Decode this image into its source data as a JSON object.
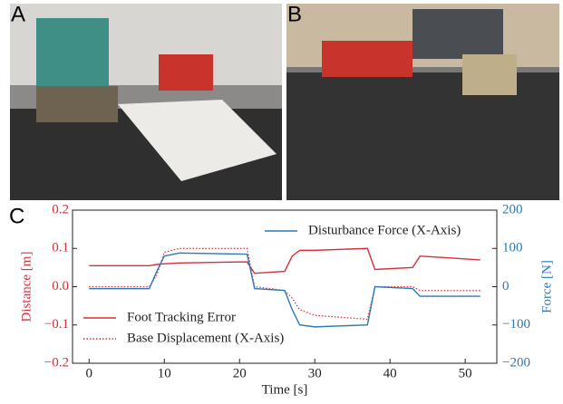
{
  "panels": [
    "A",
    "B"
  ],
  "chart_data": {
    "type": "line",
    "panel": "C",
    "x": [
      0,
      8,
      9,
      10,
      12,
      21,
      22,
      26,
      27,
      28,
      30,
      37,
      38,
      43,
      44,
      52
    ],
    "series": [
      {
        "name": "Foot Tracking Error",
        "color": "#d62f3a",
        "style": "solid",
        "legend": "lower left",
        "values": [
          0.055,
          0.055,
          0.058,
          0.06,
          0.062,
          0.065,
          0.035,
          0.04,
          0.08,
          0.095,
          0.095,
          0.1,
          0.045,
          0.05,
          0.08,
          0.07
        ]
      },
      {
        "name": "Base Displacement (X-Axis)",
        "color": "#d62f3a",
        "style": "dotted",
        "legend": "lower left",
        "values": [
          0,
          0,
          0.03,
          0.09,
          0.1,
          0.1,
          0.0,
          -0.01,
          -0.03,
          -0.06,
          -0.075,
          -0.085,
          0.0,
          0.0,
          -0.01,
          -0.01
        ]
      },
      {
        "name": "Disturbance Force (X-Axis)",
        "color": "#2a7ab5",
        "style": "solid",
        "legend": "upper right",
        "axis": "y2",
        "values": [
          -5,
          -5,
          40,
          80,
          88,
          85,
          -5,
          -10,
          -60,
          -100,
          -105,
          -100,
          0,
          -5,
          -25,
          -25
        ]
      }
    ],
    "xlabel": "Time [s]",
    "ylabel": "Distance [m]",
    "y2label": "Force [N]",
    "xlim": [
      -2.2,
      54.2
    ],
    "xticks": [
      0,
      10,
      20,
      30,
      40,
      50
    ],
    "ylim": [
      -0.2,
      0.2
    ],
    "yticks": [
      {
        "value": -0.2,
        "label": "−0.2"
      },
      {
        "value": -0.1,
        "label": "−0.1"
      },
      {
        "value": 0,
        "label": "0.0"
      },
      0.1,
      0.2
    ],
    "y2lim": [
      -200,
      200
    ],
    "y2ticks": [
      {
        "value": -200,
        "label": "−200"
      },
      {
        "value": -100,
        "label": "−100"
      },
      0,
      100,
      200
    ],
    "ycolor": "#d62f3a",
    "y2color": "#2a7ab5"
  }
}
